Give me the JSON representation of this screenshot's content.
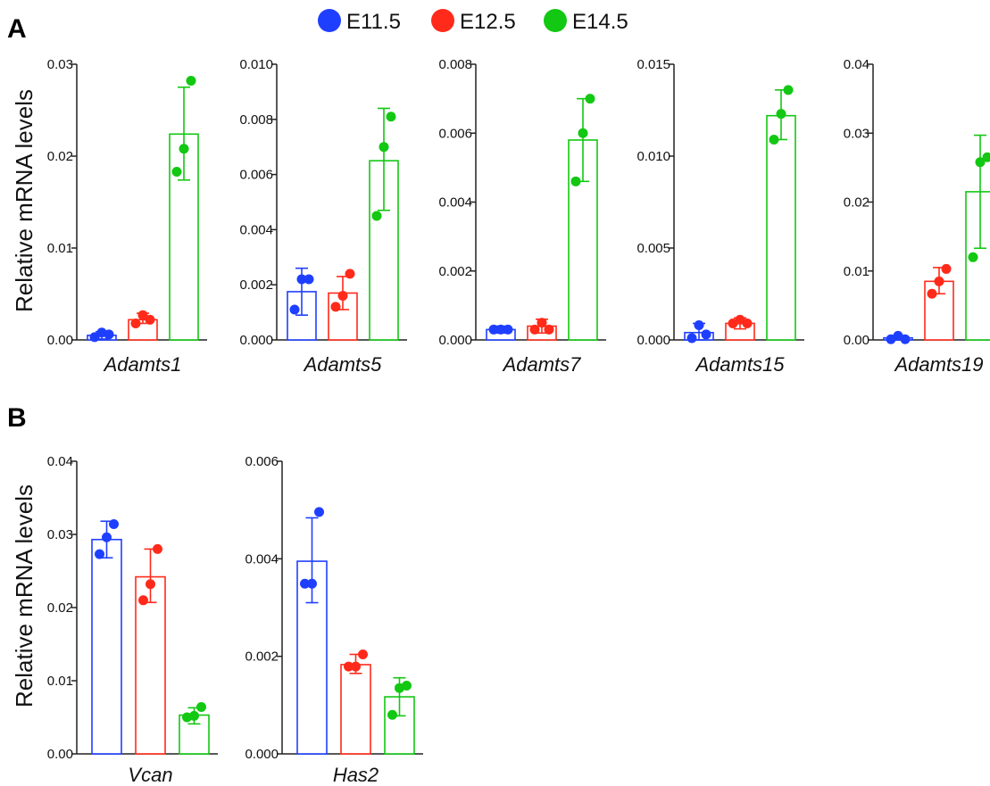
{
  "panels": [
    {
      "letter": "A",
      "ylabel": "Relative mRNA levels"
    },
    {
      "letter": "B",
      "ylabel": "Relative mRNA levels"
    }
  ],
  "legend": [
    {
      "label": "E11.5",
      "color": "#1f3fff"
    },
    {
      "label": "E12.5",
      "color": "#ff2a1a"
    },
    {
      "label": "E14.5",
      "color": "#12c812"
    }
  ],
  "chart_data": [
    {
      "type": "bar",
      "panel": "A",
      "title": "Adamts1",
      "ylim": [
        0,
        0.03
      ],
      "yticks": [
        "0.00",
        "0.01",
        "0.02",
        "0.03"
      ],
      "categories": [
        "E11.5",
        "E12.5",
        "E14.5"
      ],
      "values": [
        0.0005,
        0.0022,
        0.0224
      ],
      "errors": [
        [
          0.0001,
          0.0009
        ],
        [
          0.0018,
          0.0029
        ],
        [
          0.0174,
          0.0275
        ]
      ],
      "points": [
        [
          0.0003,
          0.0008,
          0.0006
        ],
        [
          0.0018,
          0.0027,
          0.0022
        ],
        [
          0.0183,
          0.0208,
          0.0282
        ]
      ]
    },
    {
      "type": "bar",
      "panel": "A",
      "title": "Adamts5",
      "ylim": [
        0,
        0.01
      ],
      "yticks": [
        "0.000",
        "0.002",
        "0.004",
        "0.006",
        "0.008",
        "0.010"
      ],
      "categories": [
        "E11.5",
        "E12.5",
        "E14.5"
      ],
      "values": [
        0.00175,
        0.0017,
        0.0065
      ],
      "errors": [
        [
          0.0009,
          0.0026
        ],
        [
          0.0011,
          0.0023
        ],
        [
          0.0047,
          0.0084
        ]
      ],
      "points": [
        [
          0.0011,
          0.0022,
          0.0022
        ],
        [
          0.0012,
          0.0016,
          0.0024
        ],
        [
          0.0045,
          0.007,
          0.0081
        ]
      ]
    },
    {
      "type": "bar",
      "panel": "A",
      "title": "Adamts7",
      "ylim": [
        0,
        0.008
      ],
      "yticks": [
        "0.000",
        "0.002",
        "0.004",
        "0.006",
        "0.008"
      ],
      "categories": [
        "E11.5",
        "E12.5",
        "E14.5"
      ],
      "values": [
        0.0003,
        0.0004,
        0.0058
      ],
      "errors": [
        [
          0.0002,
          0.0004
        ],
        [
          0.0002,
          0.0006
        ],
        [
          0.0046,
          0.007
        ]
      ],
      "points": [
        [
          0.0003,
          0.0003,
          0.0003
        ],
        [
          0.0003,
          0.0005,
          0.0003
        ],
        [
          0.0046,
          0.006,
          0.007
        ]
      ]
    },
    {
      "type": "bar",
      "panel": "A",
      "title": "Adamts15",
      "ylim": [
        0,
        0.015
      ],
      "yticks": [
        "0.000",
        "0.005",
        "0.010",
        "0.015"
      ],
      "categories": [
        "E11.5",
        "E12.5",
        "E14.5"
      ],
      "values": [
        0.0004,
        0.0009,
        0.0122
      ],
      "errors": [
        [
          0.0,
          0.0009
        ],
        [
          0.0006,
          0.0012
        ],
        [
          0.0109,
          0.0136
        ]
      ],
      "points": [
        [
          0.0001,
          0.0008,
          0.0003
        ],
        [
          0.0009,
          0.0011,
          0.0009
        ],
        [
          0.0109,
          0.0123,
          0.0136
        ]
      ]
    },
    {
      "type": "bar",
      "panel": "A",
      "title": "Adamts19",
      "ylim": [
        0,
        0.04
      ],
      "yticks": [
        "0.00",
        "0.01",
        "0.02",
        "0.03",
        "0.04"
      ],
      "categories": [
        "E11.5",
        "E12.5",
        "E14.5"
      ],
      "values": [
        0.0003,
        0.0085,
        0.0215
      ],
      "errors": [
        [
          0.0,
          0.0006
        ],
        [
          0.0067,
          0.0105
        ],
        [
          0.0133,
          0.0297
        ]
      ],
      "points": [
        [
          0.0001,
          0.0006,
          0.0001
        ],
        [
          0.0067,
          0.0085,
          0.0103
        ],
        [
          0.012,
          0.0258,
          0.0265
        ]
      ]
    },
    {
      "type": "bar",
      "panel": "B",
      "title": "Vcan",
      "ylim": [
        0,
        0.04
      ],
      "yticks": [
        "0.00",
        "0.01",
        "0.02",
        "0.03",
        "0.04"
      ],
      "categories": [
        "E11.5",
        "E12.5",
        "E14.5"
      ],
      "values": [
        0.0293,
        0.0242,
        0.0053
      ],
      "errors": [
        [
          0.0268,
          0.0318
        ],
        [
          0.0207,
          0.028
        ],
        [
          0.0041,
          0.0063
        ]
      ],
      "points": [
        [
          0.0273,
          0.0296,
          0.0314
        ],
        [
          0.021,
          0.0232,
          0.028
        ],
        [
          0.005,
          0.0052,
          0.0064
        ]
      ]
    },
    {
      "type": "bar",
      "panel": "B",
      "title": "Has2",
      "ylim": [
        0,
        0.006
      ],
      "yticks": [
        "0.000",
        "0.002",
        "0.004",
        "0.006"
      ],
      "categories": [
        "E11.5",
        "E12.5",
        "E14.5"
      ],
      "values": [
        0.00395,
        0.00183,
        0.00117
      ],
      "errors": [
        [
          0.0031,
          0.00484
        ],
        [
          0.00165,
          0.00204
        ],
        [
          0.00078,
          0.00156
        ]
      ],
      "points": [
        [
          0.00349,
          0.00349,
          0.00496
        ],
        [
          0.00179,
          0.00179,
          0.00204
        ],
        [
          0.0008,
          0.00135,
          0.0014
        ]
      ]
    }
  ]
}
